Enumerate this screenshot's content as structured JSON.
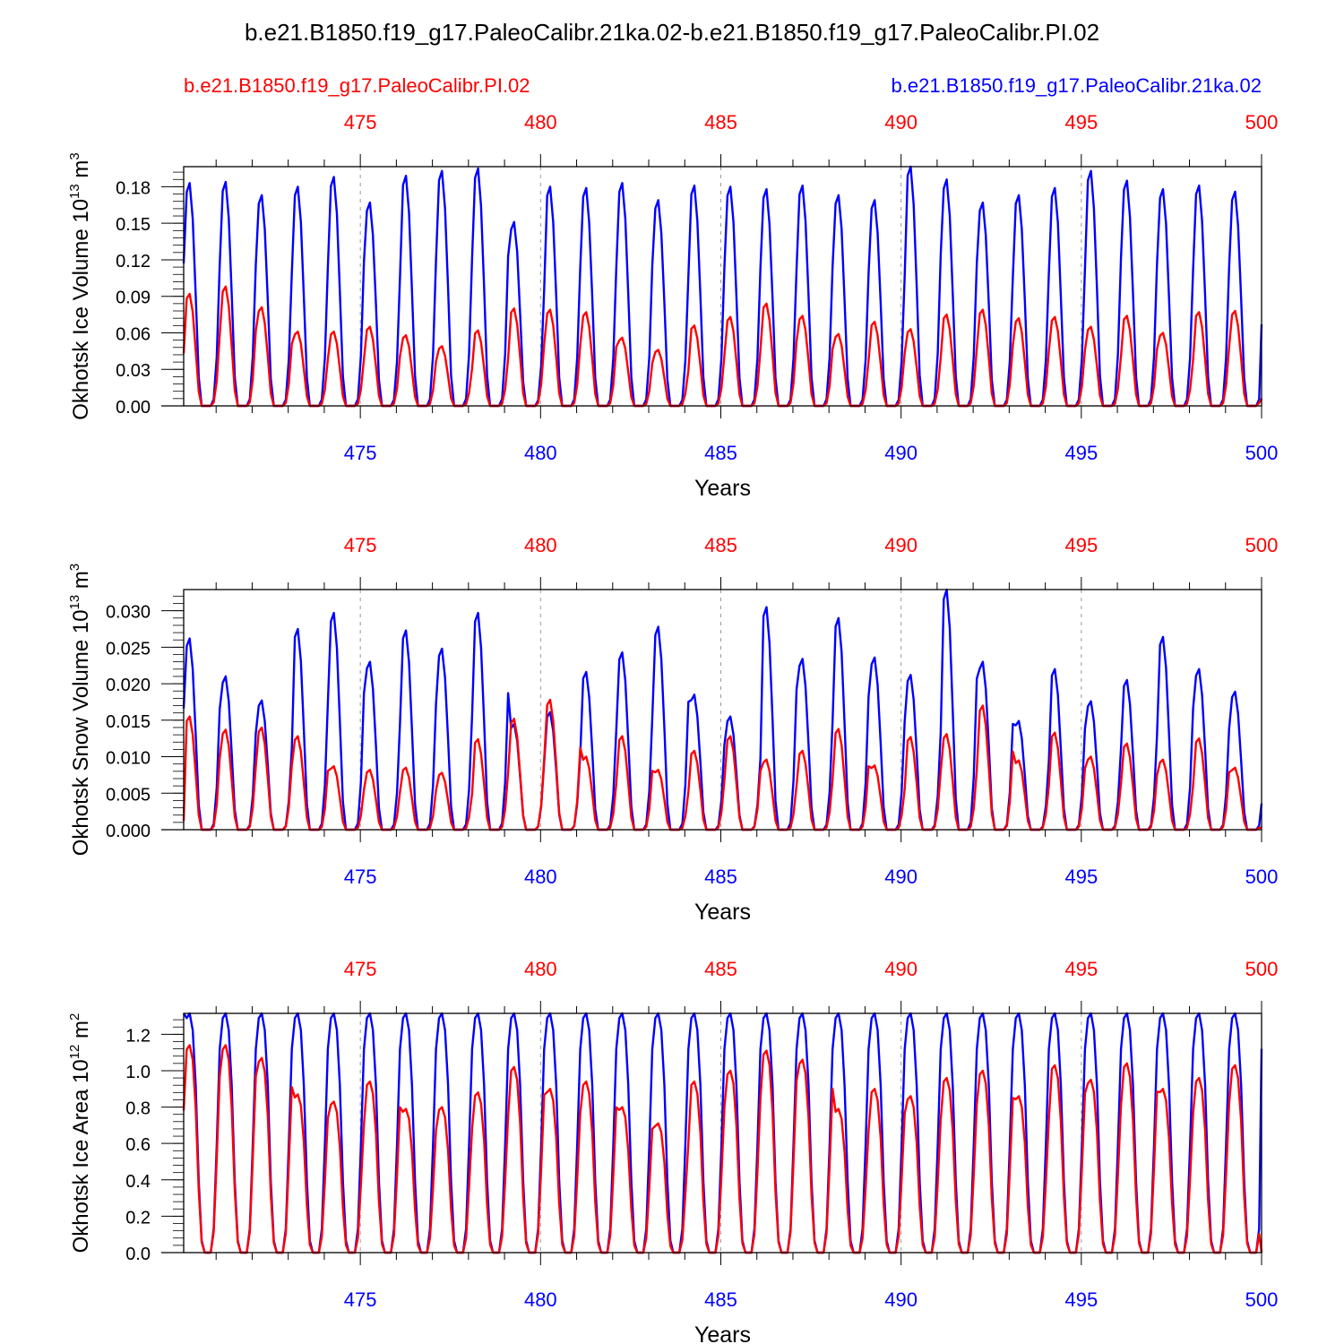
{
  "title": "b.e21.B1850.f19_g17.PaleoCalibr.21ka.02-b.e21.B1850.f19_g17.PaleoCalibr.PI.02",
  "legend": {
    "red_label": "b.e21.B1850.f19_g17.PaleoCalibr.PI.02",
    "blue_label": "b.e21.B1850.f19_g17.PaleoCalibr.21ka.02"
  },
  "colors": {
    "pi": "#ff0000",
    "lgm": "#0000ff",
    "axis": "#000000",
    "grid": "#999999"
  },
  "chart_data": [
    {
      "type": "line",
      "id": "ice-volume",
      "ylabel": "Okhotsk Ice Volume 10",
      "ylabel_exp": "13",
      "ylabel_unit": " m",
      "ylabel_unit_exp": "3",
      "xlabel": "Years",
      "xlim": [
        470.1,
        500
      ],
      "ylim": [
        0,
        0.1965
      ],
      "x_ticks": [
        475,
        480,
        485,
        490,
        495,
        500
      ],
      "y_ticks": [
        0.0,
        0.03,
        0.06,
        0.09,
        0.12,
        0.15,
        0.18
      ],
      "y_tick_labels": [
        "0.00",
        "0.03",
        "0.06",
        "0.09",
        "0.12",
        "0.15",
        "0.18"
      ],
      "grid": "dashed vertical at 5-year ticks",
      "series": [
        {
          "name": "b.e21.B1850.f19_g17.PaleoCalibr.21ka.02",
          "color": "#0000ff",
          "x_start": 470.1,
          "annual_peaks": [
            0.183,
            0.184,
            0.173,
            0.18,
            0.188,
            0.167,
            0.189,
            0.193,
            0.195,
            0.151,
            0.18,
            0.179,
            0.183,
            0.169,
            0.181,
            0.18,
            0.178,
            0.181,
            0.173,
            0.169,
            0.197,
            0.186,
            0.167,
            0.173,
            0.179,
            0.193,
            0.185,
            0.178,
            0.181,
            0.176
          ],
          "annual_minima": [
            0.0,
            0.0,
            0.0,
            0.0,
            0.0,
            0.0,
            0.0,
            0.0,
            0.0,
            0.0,
            0.0,
            0.0,
            0.0,
            0.0,
            0.0,
            0.0,
            0.0,
            0.0,
            0.0,
            0.0,
            0.0,
            0.0,
            0.0,
            0.0,
            0.0,
            0.0,
            0.0,
            0.0,
            0.0,
            0.0
          ],
          "start_value": 0.117,
          "end_value": 0.067
        },
        {
          "name": "b.e21.B1850.f19_g17.PaleoCalibr.PI.02",
          "color": "#ff0000",
          "x_start": 470.1,
          "annual_peaks": [
            0.092,
            0.098,
            0.081,
            0.061,
            0.061,
            0.065,
            0.058,
            0.049,
            0.062,
            0.08,
            0.079,
            0.077,
            0.056,
            0.046,
            0.066,
            0.073,
            0.084,
            0.074,
            0.059,
            0.069,
            0.063,
            0.075,
            0.079,
            0.072,
            0.073,
            0.065,
            0.074,
            0.06,
            0.077,
            0.078
          ],
          "annual_minima": [
            0.0,
            0.0,
            0.0,
            0.0,
            0.0,
            0.0,
            0.0,
            0.0,
            0.0,
            0.0,
            0.0,
            0.0,
            0.0,
            0.0,
            0.0,
            0.0,
            0.0,
            0.0,
            0.0,
            0.0,
            0.0,
            0.0,
            0.0,
            0.0,
            0.0,
            0.0,
            0.0,
            0.0,
            0.0,
            0.0
          ],
          "start_value": 0.043,
          "end_value": 0.006
        }
      ]
    },
    {
      "type": "line",
      "id": "snow-volume",
      "ylabel": "Okhotsk Snow Volume 10",
      "ylabel_exp": "13",
      "ylabel_unit": " m",
      "ylabel_unit_exp": "3",
      "xlabel": "Years",
      "xlim": [
        470.1,
        500
      ],
      "ylim": [
        0,
        0.0329
      ],
      "x_ticks": [
        475,
        480,
        485,
        490,
        495,
        500
      ],
      "y_ticks": [
        0.0,
        0.005,
        0.01,
        0.015,
        0.02,
        0.025,
        0.03
      ],
      "y_tick_labels": [
        "0.000",
        "0.005",
        "0.010",
        "0.015",
        "0.020",
        "0.025",
        "0.030"
      ],
      "grid": "dashed vertical at 5-year ticks",
      "series": [
        {
          "name": "b.e21.B1850.f19_g17.PaleoCalibr.21ka.02",
          "color": "#0000ff",
          "x_start": 470.1,
          "annual_peaks": [
            0.0262,
            0.021,
            0.0177,
            0.0275,
            0.0297,
            0.023,
            0.0273,
            0.0248,
            0.0297,
            0.0145,
            0.0161,
            0.0216,
            0.0243,
            0.0278,
            0.0185,
            0.0155,
            0.0305,
            0.0234,
            0.029,
            0.0236,
            0.0212,
            0.0329,
            0.023,
            0.0149,
            0.022,
            0.0176,
            0.0205,
            0.0264,
            0.022,
            0.0189
          ],
          "annual_minima": [
            0.0,
            0.0,
            0.0,
            0.0,
            0.0,
            0.0,
            0.0,
            0.0,
            0.0,
            0.0,
            0.0,
            0.0,
            0.0,
            0.0,
            0.0,
            0.0,
            0.0,
            0.0,
            0.0,
            0.0,
            0.0,
            0.0,
            0.0,
            0.0,
            0.0,
            0.0,
            0.0,
            0.0,
            0.0,
            0.0
          ],
          "start_value": 0.0166,
          "end_value": 0.0036
        },
        {
          "name": "b.e21.B1850.f19_g17.PaleoCalibr.PI.02",
          "color": "#ff0000",
          "x_start": 470.1,
          "annual_peaks": [
            0.0155,
            0.0137,
            0.014,
            0.0128,
            0.0087,
            0.0082,
            0.0085,
            0.0078,
            0.0124,
            0.0152,
            0.0178,
            0.01,
            0.0128,
            0.0082,
            0.0108,
            0.0128,
            0.0096,
            0.0108,
            0.0138,
            0.0088,
            0.0127,
            0.0131,
            0.017,
            0.0095,
            0.0133,
            0.01,
            0.0118,
            0.0096,
            0.0125,
            0.0085
          ],
          "annual_minima": [
            0.0,
            0.0,
            0.0,
            0.0,
            0.0,
            0.0,
            0.0,
            0.0,
            0.0,
            0.0,
            0.0,
            0.0,
            0.0,
            0.0,
            0.0,
            0.0,
            0.0,
            0.0,
            0.0,
            0.0,
            0.0,
            0.0,
            0.0,
            0.0,
            0.0,
            0.0,
            0.0,
            0.0,
            0.0,
            0.0
          ],
          "start_value": 0.0012,
          "end_value": 0.0003
        }
      ]
    },
    {
      "type": "line",
      "id": "ice-area",
      "ylabel": "Okhotsk Ice Area 10",
      "ylabel_exp": "12",
      "ylabel_unit": " m",
      "ylabel_unit_exp": "2",
      "xlabel": "Years",
      "xlim": [
        470.1,
        500
      ],
      "ylim": [
        0,
        1.315
      ],
      "x_ticks": [
        475,
        480,
        485,
        490,
        495,
        500
      ],
      "y_ticks": [
        0.0,
        0.2,
        0.4,
        0.6,
        0.8,
        1.0,
        1.2
      ],
      "y_tick_labels": [
        "0.0",
        "0.2",
        "0.4",
        "0.6",
        "0.8",
        "1.0",
        "1.2"
      ],
      "grid": "dashed vertical at 5-year ticks",
      "series": [
        {
          "name": "b.e21.B1850.f19_g17.PaleoCalibr.21ka.02",
          "color": "#0000ff",
          "x_start": 470.1,
          "annual_peaks": [
            1.315,
            1.315,
            1.315,
            1.315,
            1.315,
            1.315,
            1.315,
            1.315,
            1.315,
            1.315,
            1.315,
            1.315,
            1.315,
            1.315,
            1.315,
            1.315,
            1.315,
            1.315,
            1.315,
            1.315,
            1.315,
            1.315,
            1.315,
            1.315,
            1.315,
            1.315,
            1.315,
            1.315,
            1.315,
            1.315
          ],
          "annual_minima": [
            0.0,
            0.0,
            0.0,
            0.0,
            0.0,
            0.0,
            0.0,
            0.0,
            0.0,
            0.0,
            0.0,
            0.0,
            0.0,
            0.0,
            0.0,
            0.0,
            0.0,
            0.0,
            0.0,
            0.0,
            0.0,
            0.0,
            0.0,
            0.0,
            0.0,
            0.0,
            0.0,
            0.0,
            0.0,
            0.0
          ],
          "start_value": 1.315,
          "end_value": 1.12
        },
        {
          "name": "b.e21.B1850.f19_g17.PaleoCalibr.PI.02",
          "color": "#ff0000",
          "x_start": 470.1,
          "annual_peaks": [
            1.14,
            1.14,
            1.07,
            0.87,
            0.83,
            0.94,
            0.79,
            0.8,
            0.88,
            1.02,
            0.9,
            0.94,
            0.8,
            0.71,
            0.94,
            1.0,
            1.11,
            1.06,
            0.79,
            0.9,
            0.86,
            0.96,
            1.0,
            0.86,
            1.03,
            0.95,
            1.04,
            0.9,
            0.96,
            1.03
          ],
          "annual_minima": [
            0.0,
            0.0,
            0.0,
            0.0,
            0.0,
            0.0,
            0.0,
            0.0,
            0.0,
            0.0,
            0.0,
            0.0,
            0.0,
            0.0,
            0.0,
            0.0,
            0.0,
            0.0,
            0.0,
            0.0,
            0.0,
            0.0,
            0.0,
            0.0,
            0.0,
            0.0,
            0.0,
            0.0,
            0.0,
            0.0
          ],
          "start_value": 0.78,
          "end_value": 0.0
        }
      ]
    }
  ]
}
